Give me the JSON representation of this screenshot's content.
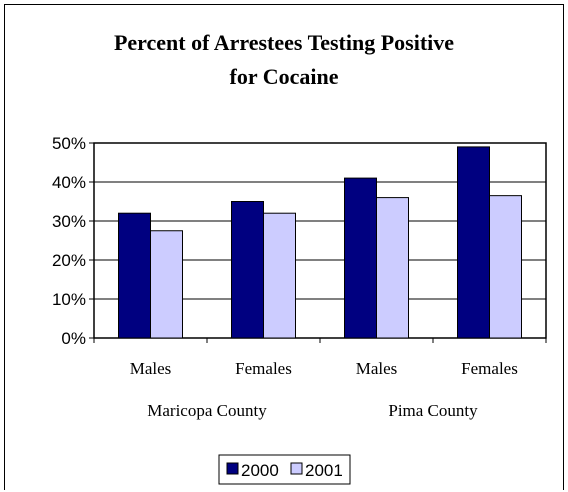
{
  "chart_data": {
    "type": "bar",
    "title_lines": [
      "Percent of Arrestees Testing Positive",
      "for Cocaine"
    ],
    "categories": [
      "Males",
      "Females",
      "Males",
      "Females"
    ],
    "groups": [
      {
        "label": "Maricopa County",
        "categories": [
          "Males",
          "Females"
        ]
      },
      {
        "label": "Pima County",
        "categories": [
          "Males",
          "Females"
        ]
      }
    ],
    "series": [
      {
        "name": "2000",
        "values": [
          32,
          35,
          41,
          49
        ],
        "color": "#000080"
      },
      {
        "name": "2001",
        "values": [
          27.5,
          32,
          36,
          36.5
        ],
        "color": "#ccccff"
      }
    ],
    "yticks": [
      "0%",
      "10%",
      "20%",
      "30%",
      "40%",
      "50%"
    ],
    "ylim": [
      0,
      50
    ],
    "grid": true,
    "legend_position": "bottom"
  }
}
